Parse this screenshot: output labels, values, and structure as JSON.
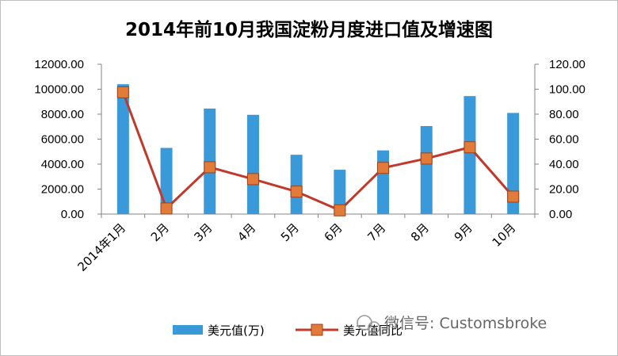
{
  "chart_data": {
    "type": "bar",
    "title": "2014年前10月我国淀粉月度进口值及增速图",
    "categories": [
      "2014年1月",
      "2月",
      "3月",
      "4月",
      "5月",
      "6月",
      "7月",
      "8月",
      "9月",
      "10月"
    ],
    "series": [
      {
        "name": "美元值(万)",
        "type": "bar",
        "axis": "left",
        "color": "#3a9ad9",
        "values": [
          10400,
          5300,
          8450,
          7950,
          4750,
          3550,
          5100,
          7050,
          9450,
          8100
        ]
      },
      {
        "name": "美元值同比",
        "type": "line",
        "axis": "right",
        "color": "#c0392b",
        "values": [
          97.5,
          4.5,
          37.5,
          28.0,
          18.0,
          3.0,
          37.0,
          44.5,
          53.5,
          14.0
        ]
      }
    ],
    "y_left": {
      "min": 0,
      "max": 12000,
      "ticks": [
        "0.00",
        "2000.00",
        "4000.00",
        "6000.00",
        "8000.00",
        "10000.00",
        "12000.00"
      ]
    },
    "y_right": {
      "min": 0,
      "max": 120,
      "ticks": [
        "0.00",
        "20.00",
        "40.00",
        "60.00",
        "80.00",
        "100.00",
        "120.00"
      ]
    },
    "grid": false,
    "legend": "bottom"
  },
  "watermark": "微信号: Customsbroke"
}
